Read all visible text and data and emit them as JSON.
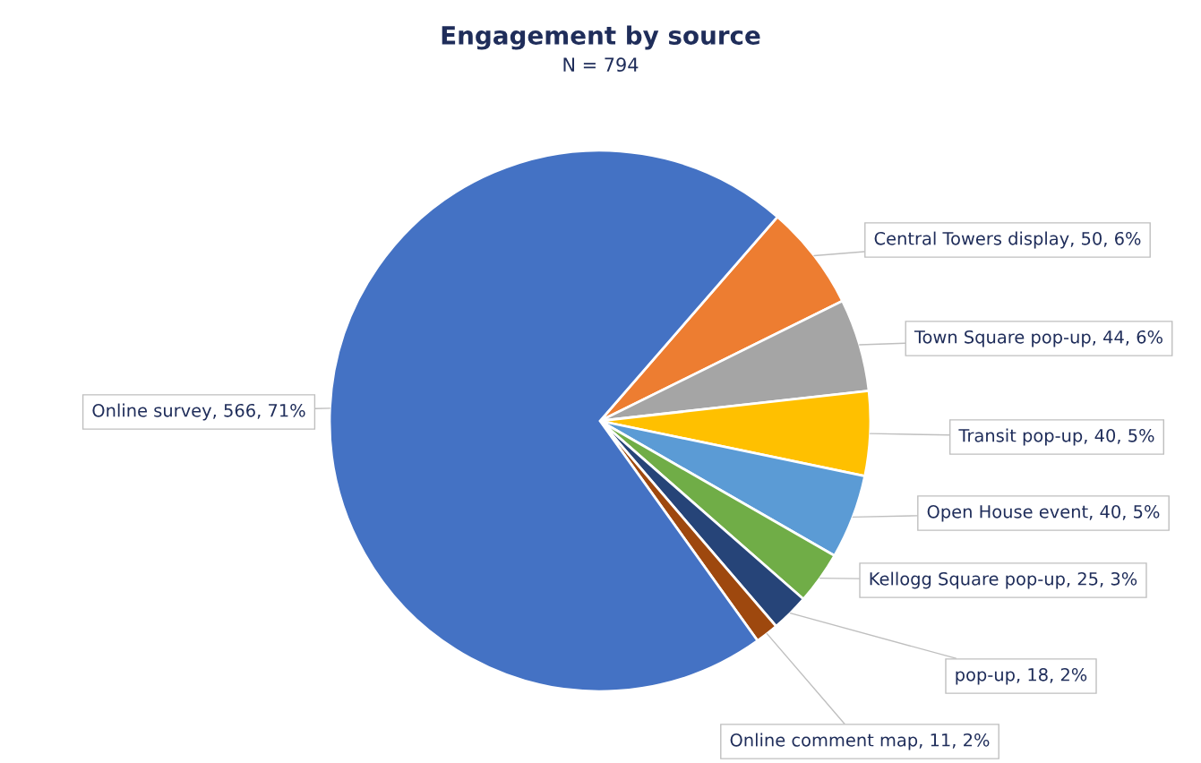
{
  "chart_data": {
    "type": "pie",
    "title": "Engagement by source",
    "subtitle": "N = 794",
    "categories": [
      "Central Towers display",
      "Town Square pop-up",
      "Transit pop-up",
      "Open House event",
      "Kellogg Square pop-up",
      "pop-up",
      "Online comment map",
      "Online survey"
    ],
    "values": [
      50,
      44,
      40,
      40,
      25,
      18,
      11,
      566
    ],
    "value_labels": [
      "50, 6%",
      "44, 6%",
      "40, 5%",
      "40, 5%",
      "25, 3%",
      "18, 2%",
      "11, 2%",
      "566, 71%"
    ],
    "colors": [
      "#ed7d31",
      "#a5a5a5",
      "#ffc000",
      "#5b9bd5",
      "#70ad47",
      "#264478",
      "#9e480e",
      "#4472c4"
    ],
    "legend": false
  }
}
